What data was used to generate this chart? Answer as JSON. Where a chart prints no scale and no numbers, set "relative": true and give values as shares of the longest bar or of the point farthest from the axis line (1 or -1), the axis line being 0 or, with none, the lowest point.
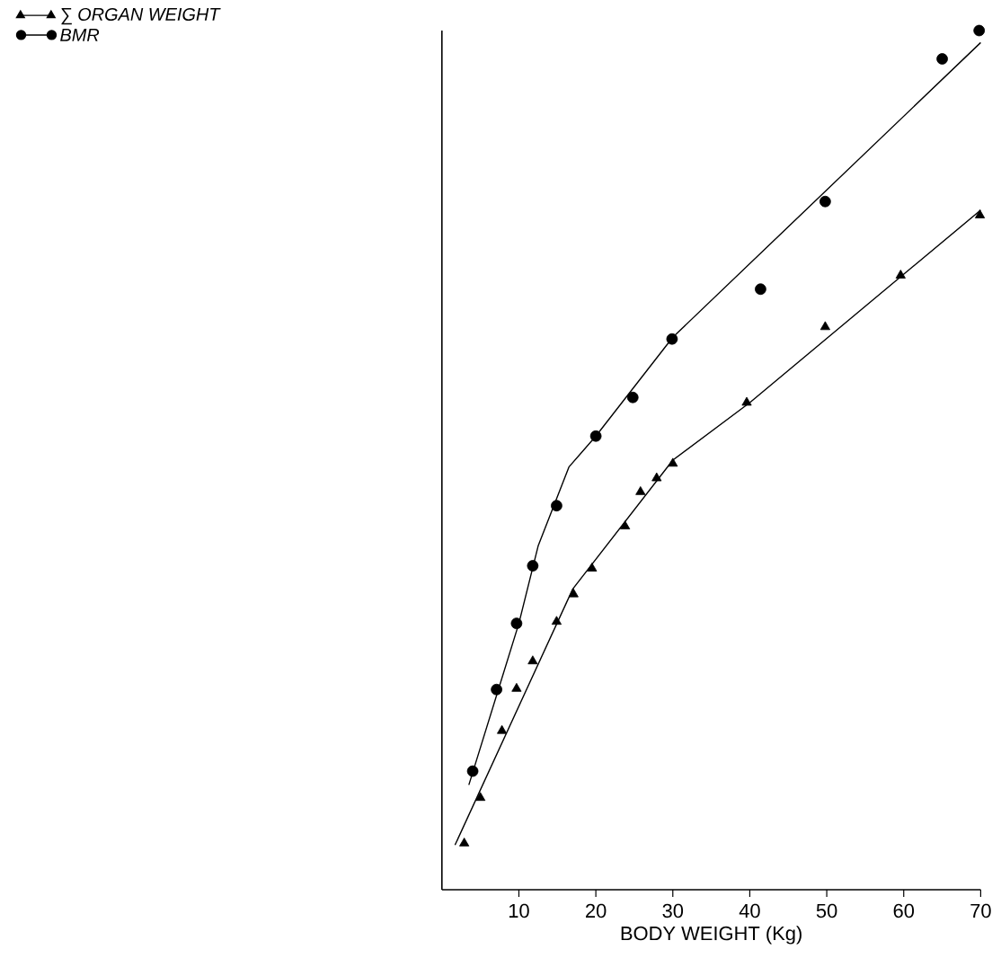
{
  "chart_data": {
    "type": "scatter",
    "relative": true,
    "xlabel": "BODY WEIGHT (Kg)",
    "xlim": [
      0,
      70
    ],
    "xticks": [
      10,
      20,
      30,
      40,
      50,
      60,
      70
    ],
    "legend": "top left",
    "series": [
      {
        "name": "∑ ORGAN WEIGHT",
        "marker": "triangle",
        "color": "#000000",
        "x": [
          2.9,
          5.0,
          7.8,
          9.7,
          11.8,
          14.9,
          17.1,
          19.5,
          23.8,
          25.8,
          27.9,
          30.0,
          39.6,
          49.8,
          59.6,
          69.9
        ],
        "values": [
          0.054,
          0.107,
          0.185,
          0.234,
          0.266,
          0.312,
          0.344,
          0.374,
          0.423,
          0.463,
          0.479,
          0.496,
          0.567,
          0.655,
          0.715,
          0.785
        ]
      },
      {
        "name": "BMR",
        "marker": "circle",
        "color": "#000000",
        "x": [
          4.0,
          7.1,
          9.7,
          11.8,
          14.9,
          20.0,
          24.8,
          29.9,
          41.4,
          49.8,
          65.0,
          69.8
        ],
        "values": [
          0.138,
          0.233,
          0.31,
          0.377,
          0.447,
          0.528,
          0.573,
          0.641,
          0.699,
          0.801,
          0.967,
          1.0
        ]
      },
      {
        "type": "line",
        "color": "#000000",
        "x": [
          1.7,
          17.0,
          30.0,
          40.0,
          70.0
        ],
        "values": [
          0.052,
          0.35,
          0.5,
          0.567,
          0.791
        ]
      },
      {
        "type": "line",
        "color": "#000000",
        "x": [
          3.5,
          10.0,
          12.5,
          16.5,
          20.0,
          30.0,
          70.0
        ],
        "values": [
          0.122,
          0.31,
          0.4,
          0.492,
          0.528,
          0.643,
          0.986
        ]
      }
    ]
  }
}
